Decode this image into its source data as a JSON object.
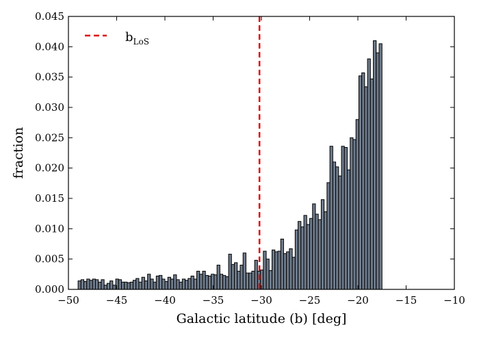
{
  "chart_data": {
    "type": "bar",
    "xlabel": "Galactic latitude (b) [deg]",
    "ylabel": "fraction",
    "xlim": [
      -50,
      -10
    ],
    "ylim": [
      0,
      0.045
    ],
    "x_ticks": [
      -50,
      -45,
      -40,
      -35,
      -30,
      -25,
      -20,
      -15,
      -10
    ],
    "y_ticks": [
      0,
      0.005,
      0.01,
      0.015,
      0.02,
      0.025,
      0.03,
      0.035,
      0.04,
      0.045
    ],
    "x_tick_labels": [
      "−50",
      "−45",
      "−40",
      "−35",
      "−30",
      "−25",
      "−20",
      "−15",
      "−10"
    ],
    "y_tick_labels": [
      "0.000",
      "0.005",
      "0.010",
      "0.015",
      "0.020",
      "0.025",
      "0.030",
      "0.035",
      "0.040",
      "0.045"
    ],
    "bin_start": -49.0,
    "bin_width": 0.3,
    "values": [
      0.0014,
      0.0016,
      0.0013,
      0.0017,
      0.0015,
      0.0017,
      0.0016,
      0.0012,
      0.0016,
      0.0007,
      0.001,
      0.0014,
      0.0007,
      0.0017,
      0.0016,
      0.0012,
      0.0012,
      0.0011,
      0.0012,
      0.0015,
      0.0018,
      0.0012,
      0.002,
      0.0014,
      0.0025,
      0.0017,
      0.0012,
      0.0022,
      0.0023,
      0.0017,
      0.0013,
      0.002,
      0.0017,
      0.0024,
      0.0016,
      0.0012,
      0.0017,
      0.0015,
      0.0018,
      0.0022,
      0.0017,
      0.003,
      0.0025,
      0.003,
      0.0023,
      0.0022,
      0.0025,
      0.0024,
      0.004,
      0.0025,
      0.0023,
      0.0021,
      0.0058,
      0.0041,
      0.0044,
      0.003,
      0.004,
      0.006,
      0.0027,
      0.0027,
      0.003,
      0.0048,
      0.003,
      0.0032,
      0.0063,
      0.005,
      0.0031,
      0.0065,
      0.0062,
      0.0063,
      0.0083,
      0.0059,
      0.0062,
      0.0067,
      0.0053,
      0.0098,
      0.0112,
      0.0103,
      0.0122,
      0.0107,
      0.0117,
      0.0141,
      0.0124,
      0.0115,
      0.0148,
      0.0128,
      0.0176,
      0.0236,
      0.021,
      0.0202,
      0.0187,
      0.0236,
      0.0234,
      0.0197,
      0.025,
      0.0247,
      0.028,
      0.0352,
      0.0357,
      0.0334,
      0.038,
      0.0347,
      0.041,
      0.039,
      0.0405
    ],
    "reference_line": {
      "label": "b",
      "label_sub": "LoS",
      "x": -30.2,
      "color": "#e00000"
    },
    "legend_position": "top-left",
    "bar_color": "#6e7b8b",
    "grid": false
  }
}
